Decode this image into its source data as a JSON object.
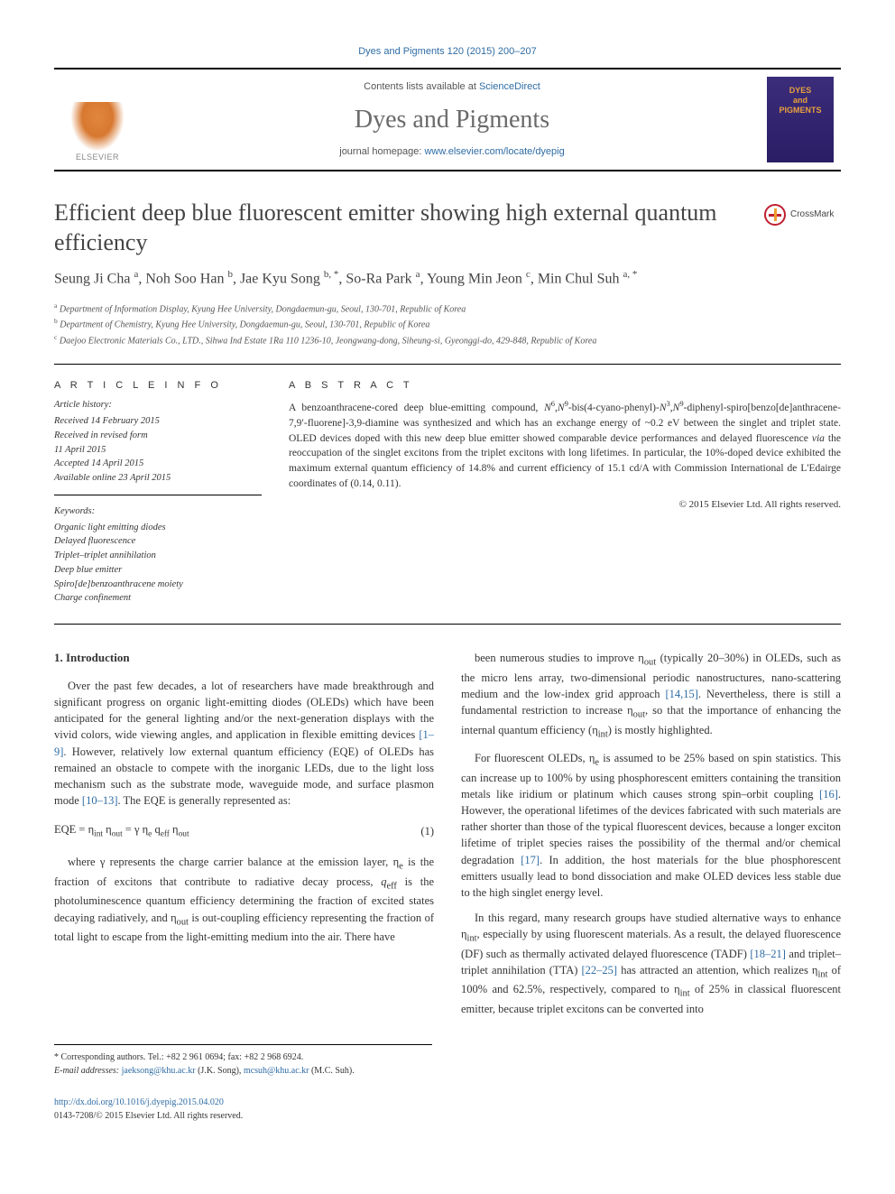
{
  "citation": "Dyes and Pigments 120 (2015) 200–207",
  "masthead": {
    "publisher": "ELSEVIER",
    "contents_prefix": "Contents lists available at ",
    "contents_link": "ScienceDirect",
    "journal_name": "Dyes and Pigments",
    "homepage_prefix": "journal homepage: ",
    "homepage_url": "www.elsevier.com/locate/dyepig",
    "cover_line1": "DYES",
    "cover_line2": "and",
    "cover_line3": "PIGMENTS"
  },
  "title": "Efficient deep blue fluorescent emitter showing high external quantum efficiency",
  "crossmark": "CrossMark",
  "authors_html": "Seung Ji Cha <sup>a</sup>, Noh Soo Han <sup>b</sup>, Jae Kyu Song <sup>b, *</sup>, So-Ra Park <sup>a</sup>, Young Min Jeon <sup>c</sup>, Min Chul Suh <sup>a, *</sup>",
  "affiliations": {
    "a": "Department of Information Display, Kyung Hee University, Dongdaemun-gu, Seoul, 130-701, Republic of Korea",
    "b": "Department of Chemistry, Kyung Hee University, Dongdaemun-gu, Seoul, 130-701, Republic of Korea",
    "c": "Daejoo Electronic Materials Co., LTD., Sihwa Ind Estate 1Ra 110 1236-10, Jeongwang-dong, Siheung-si, Gyeonggi-do, 429-848, Republic of Korea"
  },
  "article_info": {
    "label": "A R T I C L E   I N F O",
    "history_label": "Article history:",
    "received": "Received 14 February 2015",
    "revised1": "Received in revised form",
    "revised2": "11 April 2015",
    "accepted": "Accepted 14 April 2015",
    "online": "Available online 23 April 2015",
    "keywords_label": "Keywords:",
    "keywords": [
      "Organic light emitting diodes",
      "Delayed fluorescence",
      "Triplet–triplet annihilation",
      "Deep blue emitter",
      "Spiro[de]benzoanthracene moiety",
      "Charge confinement"
    ]
  },
  "abstract": {
    "label": "A B S T R A C T",
    "text_html": "A benzoanthracene-cored deep blue-emitting compound, <i>N</i><sup>6</sup>,<i>N</i><sup>9</sup>-bis(4-cyano-phenyl)-<i>N</i><sup>3</sup>,<i>N</i><sup>9</sup>-diphenyl-spiro[benzo[de]anthracene-7,9′-fluorene]-3,9-diamine was synthesized and which has an exchange energy of ~0.2 eV between the singlet and triplet state. OLED devices doped with this new deep blue emitter showed comparable device performances and delayed fluorescence <i>via</i> the reoccupation of the singlet excitons from the triplet excitons with long lifetimes. In particular, the 10%-doped device exhibited the maximum external quantum efficiency of 14.8% and current efficiency of 15.1 cd/A with Commission International de L'Edairge coordinates of (0.14, 0.11).",
    "copyright": "© 2015 Elsevier Ltd. All rights reserved."
  },
  "section1": {
    "heading": "1. Introduction",
    "p1_html": "Over the past few decades, a lot of researchers have made breakthrough and significant progress on organic light-emitting diodes (OLEDs) which have been anticipated for the general lighting and/or the next-generation displays with the vivid colors, wide viewing angles, and application in flexible emitting devices <span class='ref-link'>[1–9]</span>. However, relatively low external quantum efficiency (EQE) of OLEDs has remained an obstacle to compete with the inorganic LEDs, due to the light loss mechanism such as the substrate mode, waveguide mode, and surface plasmon mode <span class='ref-link'>[10–13]</span>. The EQE is generally represented as:",
    "equation": "EQE = η<span class='subscript'>int</span> η<span class='subscript'>out</span> = γ η<span class='subscript'>e</span> q<span class='subscript'>eff</span> η<span class='subscript'>out</span>",
    "eqnum": "(1)",
    "p2_html": "where γ represents the charge carrier balance at the emission layer, η<sub>e</sub> is the fraction of excitons that contribute to radiative decay process, <i>q</i><sub>eff</sub> is the photoluminescence quantum efficiency determining the fraction of excited states decaying radiatively, and η<sub>out</sub> is out-coupling efficiency representing the fraction of total light to escape from the light-emitting medium into the air. There have",
    "p3_html": "been numerous studies to improve η<sub>out</sub> (typically 20–30%) in OLEDs, such as the micro lens array, two-dimensional periodic nanostructures, nano-scattering medium and the low-index grid approach <span class='ref-link'>[14,15]</span>. Nevertheless, there is still a fundamental restriction to increase η<sub>out</sub>, so that the importance of enhancing the internal quantum efficiency (η<sub>int</sub>) is mostly highlighted.",
    "p4_html": "For fluorescent OLEDs, η<sub>e</sub> is assumed to be 25% based on spin statistics. This can increase up to 100% by using phosphorescent emitters containing the transition metals like iridium or platinum which causes strong spin–orbit coupling <span class='ref-link'>[16]</span>. However, the operational lifetimes of the devices fabricated with such materials are rather shorter than those of the typical fluorescent devices, because a longer exciton lifetime of triplet species raises the possibility of the thermal and/or chemical degradation <span class='ref-link'>[17]</span>. In addition, the host materials for the blue phosphorescent emitters usually lead to bond dissociation and make OLED devices less stable due to the high singlet energy level.",
    "p5_html": "In this regard, many research groups have studied alternative ways to enhance η<sub>int</sub>, especially by using fluorescent materials. As a result, the delayed fluorescence (DF) such as thermally activated delayed fluorescence (TADF) <span class='ref-link'>[18–21]</span> and triplet–triplet annihilation (TTA) <span class='ref-link'>[22–25]</span> has attracted an attention, which realizes η<sub>int</sub> of 100% and 62.5%, respectively, compared to η<sub>int</sub> of 25% in classical fluorescent emitter, because triplet excitons can be converted into"
  },
  "footnotes": {
    "corr": "* Corresponding authors. Tel.: +82 2 961 0694; fax: +82 2 968 6924.",
    "email_label": "E-mail addresses:",
    "email1": "jaeksong@khu.ac.kr",
    "email1_who": "(J.K. Song),",
    "email2": "mcsuh@khu.ac.kr",
    "email2_who": "(M.C. Suh)."
  },
  "footer": {
    "doi": "http://dx.doi.org/10.1016/j.dyepig.2015.04.020",
    "issn": "0143-7208/© 2015 Elsevier Ltd. All rights reserved."
  },
  "colors": {
    "link": "#2e6ca4",
    "text": "#343434",
    "heading": "#444444",
    "cover_bg": "#3b2d7a",
    "cover_text": "#e8a040",
    "elsevier_orange": "#d87830"
  },
  "typography": {
    "body_fontsize": 12.5,
    "title_fontsize": 26,
    "journal_name_fontsize": 28,
    "authors_fontsize": 16,
    "abstract_fontsize": 11.5,
    "affiliation_fontsize": 10,
    "footnote_fontsize": 10
  }
}
